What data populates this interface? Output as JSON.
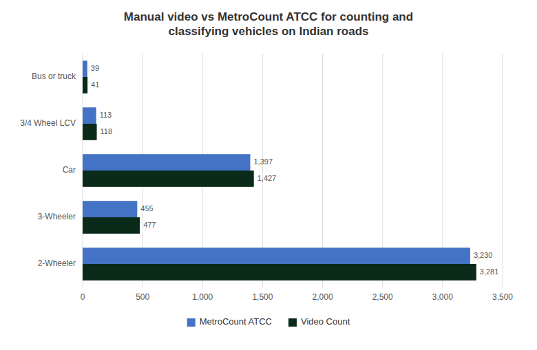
{
  "chart_data": {
    "type": "bar",
    "orientation": "horizontal",
    "title": "Manual video vs MetroCount ATCC for counting and\nclassifying vehicles on Indian roads",
    "categories": [
      "2-Wheeler",
      "3-Wheeler",
      "Car",
      "3/4 Wheel LCV",
      "Bus or truck"
    ],
    "series": [
      {
        "name": "MetroCount ATCC",
        "color": "#4472c4",
        "values": [
          3230,
          455,
          1397,
          113,
          39
        ],
        "value_labels": [
          "3,230",
          "455",
          "1,397",
          "113",
          "39"
        ]
      },
      {
        "name": "Video Count",
        "color": "#0a2a1a",
        "values": [
          3281,
          477,
          1427,
          118,
          41
        ],
        "value_labels": [
          "3,281",
          "477",
          "1,427",
          "118",
          "41"
        ]
      }
    ],
    "xlim": [
      0,
      3500
    ],
    "xticks": [
      0,
      500,
      {
        "value": 1000,
        "label": "1,000"
      },
      {
        "value": 1500,
        "label": "1,500"
      },
      {
        "value": 2000,
        "label": "2,000"
      },
      {
        "value": 2500,
        "label": "2,500"
      },
      {
        "value": 3000,
        "label": "3,000"
      },
      {
        "value": 3500,
        "label": "3,500"
      }
    ],
    "grid": true,
    "data_labels": true,
    "legend": "bottom"
  }
}
